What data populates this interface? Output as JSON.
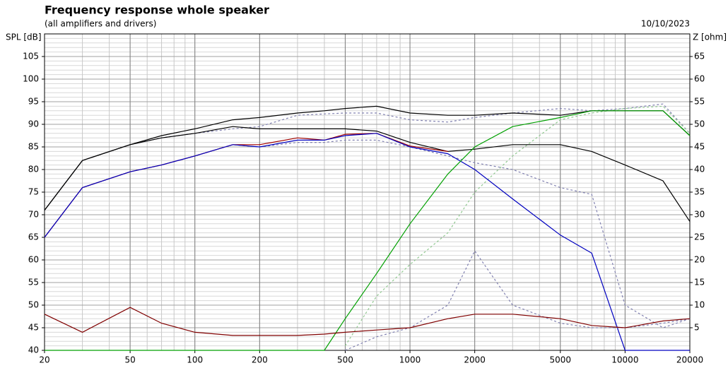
{
  "chart_data": {
    "type": "line",
    "title": "Frequency response whole speaker",
    "subtitle": "(all amplifiers and drivers)",
    "date": "10/10/2023",
    "ylabel": "SPL [dB]",
    "y2label": "Z [ohm]",
    "log_x": true,
    "grid": true,
    "x": [
      20,
      30,
      50,
      70,
      100,
      150,
      200,
      300,
      400,
      500,
      700,
      1000,
      1500,
      2000,
      3000,
      5000,
      7000,
      10000,
      15000,
      20000
    ],
    "xlim": [
      20,
      20000
    ],
    "xticks": [
      20,
      50,
      100,
      200,
      500,
      1000,
      2000,
      5000,
      10000,
      20000
    ],
    "ylim": [
      40,
      110
    ],
    "yticks": [
      40,
      45,
      50,
      55,
      60,
      65,
      70,
      75,
      80,
      85,
      90,
      95,
      100,
      105
    ],
    "y2lim": [
      0,
      70
    ],
    "y2ticks": [
      5,
      10,
      15,
      20,
      25,
      30,
      35,
      40,
      45,
      50,
      55,
      60,
      65
    ],
    "series": [
      {
        "color": "#8080b0",
        "style": "dashed",
        "values": [
          71,
          82,
          85.5,
          87,
          88,
          89,
          89.5,
          92,
          92.3,
          92.5,
          92.5,
          91,
          90.5,
          91.5,
          92.5,
          93.5,
          93,
          93.5,
          94.5,
          88
        ]
      },
      {
        "color": "#8080b0",
        "style": "dashed",
        "values": [
          65,
          76,
          79.5,
          81,
          83,
          85.5,
          85,
          86,
          86,
          86.5,
          86.5,
          85,
          83,
          81.5,
          80,
          76,
          74.5,
          50,
          45,
          47
        ]
      },
      {
        "color": "#90c890",
        "style": "dashed",
        "values": [
          null,
          null,
          null,
          null,
          null,
          null,
          null,
          null,
          null,
          41,
          52,
          59,
          66,
          75,
          83,
          91,
          92.5,
          93.5,
          94,
          88
        ]
      },
      {
        "color": "#000000",
        "style": "solid",
        "values": [
          71,
          82,
          85.5,
          87.5,
          89,
          91,
          91.5,
          92.5,
          93,
          93.5,
          94,
          92.5,
          92,
          92,
          92.5,
          92,
          93,
          93,
          93,
          87.5
        ]
      },
      {
        "color": "#000000",
        "style": "solid",
        "values": [
          71,
          82,
          85.5,
          87,
          88,
          89.5,
          89,
          89,
          89,
          89,
          88.5,
          86,
          84,
          84.5,
          85.5,
          85.5,
          84,
          81,
          77.5,
          68.5
        ]
      },
      {
        "color": "#a00000",
        "style": "solid",
        "values": [
          65,
          76,
          79.5,
          81,
          83,
          85.5,
          85.5,
          87,
          86.5,
          87.8,
          88,
          85.2,
          84,
          null,
          null,
          null,
          null,
          null,
          null,
          null
        ]
      },
      {
        "color": "#0000c0",
        "style": "solid",
        "values": [
          65,
          76,
          79.5,
          81,
          83,
          85.5,
          85,
          86.5,
          86.5,
          87.5,
          88,
          85,
          83.5,
          80,
          73.5,
          65.5,
          61.5,
          40,
          40,
          40
        ]
      },
      {
        "color": "#00a000",
        "style": "solid",
        "values": [
          40,
          40,
          40,
          40,
          40,
          40,
          40,
          40,
          40,
          47,
          57,
          68,
          79,
          85,
          89.5,
          91.5,
          93,
          93,
          93,
          87.5
        ]
      },
      {
        "color": "#8080b0",
        "style": "dashed",
        "axis": "y2",
        "values": [
          null,
          null,
          null,
          null,
          null,
          null,
          null,
          null,
          null,
          0,
          3,
          5,
          10,
          22,
          10,
          6,
          5,
          5,
          6,
          7
        ]
      },
      {
        "color": "#800000",
        "style": "solid",
        "axis": "y2",
        "values": [
          8,
          4,
          9.5,
          6,
          4,
          3.3,
          3.3,
          3.3,
          3.6,
          4,
          4.5,
          5,
          7,
          8,
          8,
          7,
          5.5,
          5,
          6.5,
          7
        ]
      }
    ]
  }
}
